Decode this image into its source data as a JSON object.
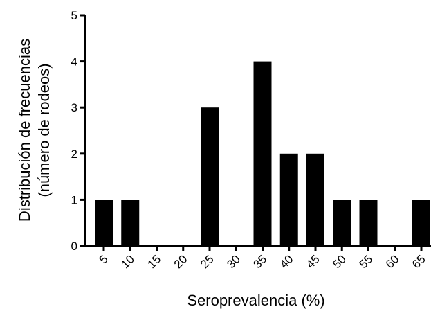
{
  "chart_data": {
    "type": "bar",
    "categories": [
      "5",
      "10",
      "15",
      "20",
      "25",
      "30",
      "35",
      "40",
      "45",
      "50",
      "55",
      "60",
      "65"
    ],
    "values": [
      1,
      1,
      0,
      0,
      3,
      0,
      4,
      2,
      2,
      1,
      1,
      0,
      1
    ],
    "xlabel": "Seroprevalencia (%)",
    "ylabel_line1": "Distribución de frecuencias",
    "ylabel_line2": "(número de rodeos)",
    "ylim": [
      0,
      5
    ],
    "yticks": [
      0,
      1,
      2,
      3,
      4,
      5
    ],
    "grid": false,
    "bar_color": "#000000"
  }
}
